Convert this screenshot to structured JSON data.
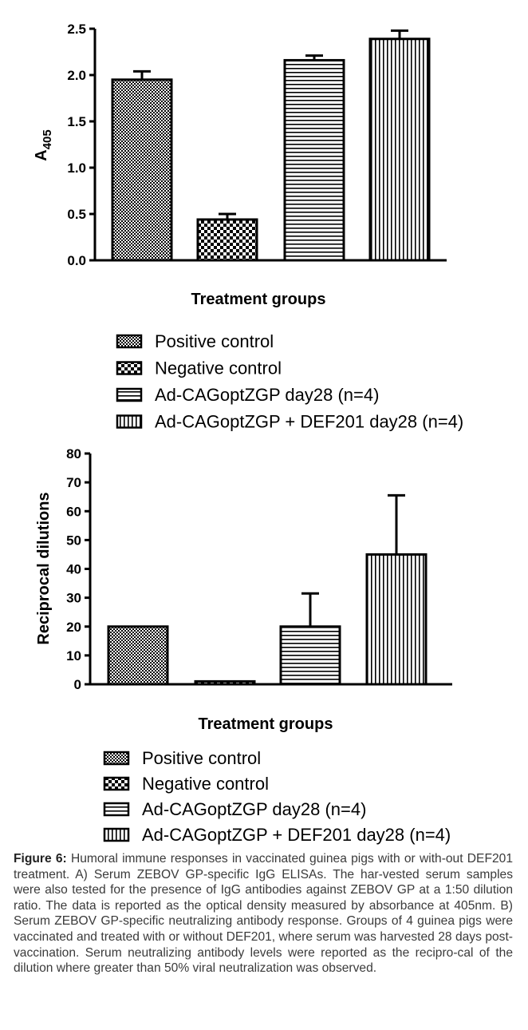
{
  "chart_data": [
    {
      "type": "bar",
      "categories": [
        "Positive control",
        "Negative control",
        "Ad-CAGoptZGP day28 (n=4)",
        "Ad-CAGoptZGP + DEF201 day28 (n=4)"
      ],
      "values": [
        1.95,
        0.44,
        2.16,
        2.39
      ],
      "errors": [
        0.09,
        0.06,
        0.05,
        0.09
      ],
      "ylabel_main": "A",
      "ylabel_sub": "405",
      "xlabel": "Treatment groups",
      "ylim": [
        0,
        2.5
      ],
      "yticks": [
        0.0,
        0.5,
        1.0,
        1.5,
        2.0,
        2.5
      ],
      "ytick_labels": [
        "0.0",
        "0.5",
        "1.0",
        "1.5",
        "2.0",
        "2.5"
      ],
      "patterns": [
        "fine-check",
        "coarse-check",
        "horizontal-lines",
        "vertical-lines"
      ],
      "legend": [
        "Positive control",
        "Negative control",
        "Ad-CAGoptZGP day28 (n=4)",
        "Ad-CAGoptZGP + DEF201 day28 (n=4)"
      ],
      "legend_position": "below"
    },
    {
      "type": "bar",
      "categories": [
        "Positive control",
        "Negative control",
        "Ad-CAGoptZGP day28 (n=4)",
        "Ad-CAGoptZGP + DEF201 day28 (n=4)"
      ],
      "values": [
        20,
        1,
        20,
        45
      ],
      "errors": [
        0,
        0,
        11.5,
        20.5
      ],
      "ylabel": "Reciprocal dilutions",
      "xlabel": "Treatment groups",
      "ylim": [
        0,
        80
      ],
      "yticks": [
        0,
        10,
        20,
        30,
        40,
        50,
        60,
        70,
        80
      ],
      "ytick_labels": [
        "0",
        "10",
        "20",
        "30",
        "40",
        "50",
        "60",
        "70",
        "80"
      ],
      "patterns": [
        "fine-check",
        "coarse-check",
        "horizontal-lines",
        "vertical-lines"
      ],
      "legend": [
        "Positive control",
        "Negative control",
        "Ad-CAGoptZGP day28 (n=4)",
        "Ad-CAGoptZGP + DEF201 day28 (n=4)"
      ],
      "legend_position": "below"
    }
  ],
  "caption": {
    "label": "Figure 6:",
    "text": " Humoral immune responses in vaccinated guinea pigs with or with-out DEF201 treatment. A) Serum ZEBOV GP-specific IgG ELISAs. The har-vested serum samples were also tested for the presence of IgG antibodies against ZEBOV GP at a 1:50 dilution ratio. The data is reported as the optical density measured by absorbance at 405nm. B) Serum ZEBOV GP-specific neutralizing antibody response. Groups of 4 guinea pigs were vaccinated and treated with or without DEF201, where serum was harvested 28 days post-vaccination. Serum neutralizing antibody levels were reported as the recipro-cal of the dilution where greater than 50% viral neutralization was observed."
  }
}
